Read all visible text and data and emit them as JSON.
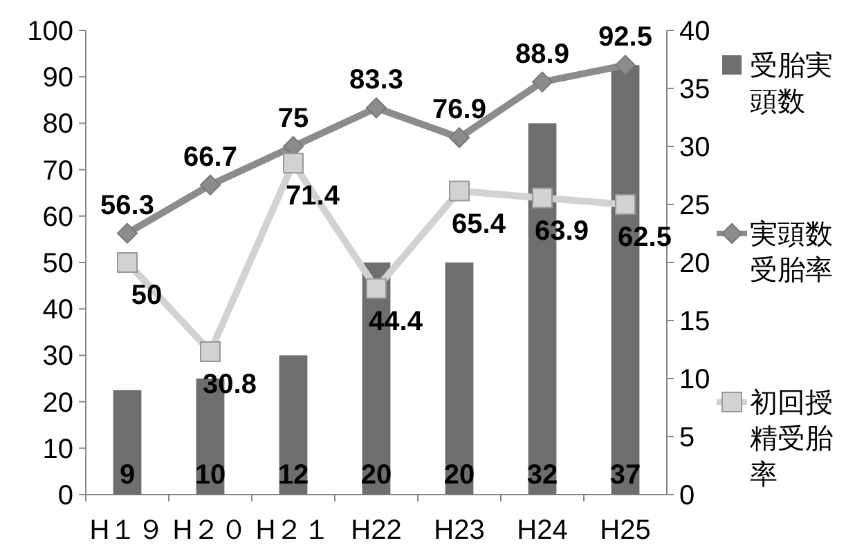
{
  "chart_data": {
    "type": "bar",
    "categories": [
      "H１９",
      "H２０",
      "H２１",
      "H22",
      "H23",
      "H24",
      "H25"
    ],
    "series": [
      {
        "name": "受胎実頭数",
        "axis": "y2",
        "color": "#6e6e6e",
        "values": [
          9,
          10,
          12,
          20,
          20,
          32,
          37
        ]
      },
      {
        "name": "実頭数受胎率",
        "type": "line",
        "axis": "y",
        "color": "#8c8c8c",
        "marker": "diamond",
        "values": [
          56.3,
          66.7,
          75,
          83.3,
          76.9,
          88.9,
          92.5
        ]
      },
      {
        "name": "初回授精受胎率",
        "type": "line",
        "axis": "y",
        "color": "#d2d2d2",
        "marker": "square",
        "values": [
          50,
          30.8,
          71.4,
          44.4,
          65.4,
          63.9,
          62.5
        ]
      }
    ],
    "ylim": [
      0,
      100
    ],
    "yticks": [
      0,
      10,
      20,
      30,
      40,
      50,
      60,
      70,
      80,
      90,
      100
    ],
    "y2lim": [
      0,
      40
    ],
    "y2ticks": [
      0,
      5,
      10,
      15,
      20,
      25,
      30,
      35,
      40
    ],
    "legend": "right",
    "data_labels": true
  }
}
